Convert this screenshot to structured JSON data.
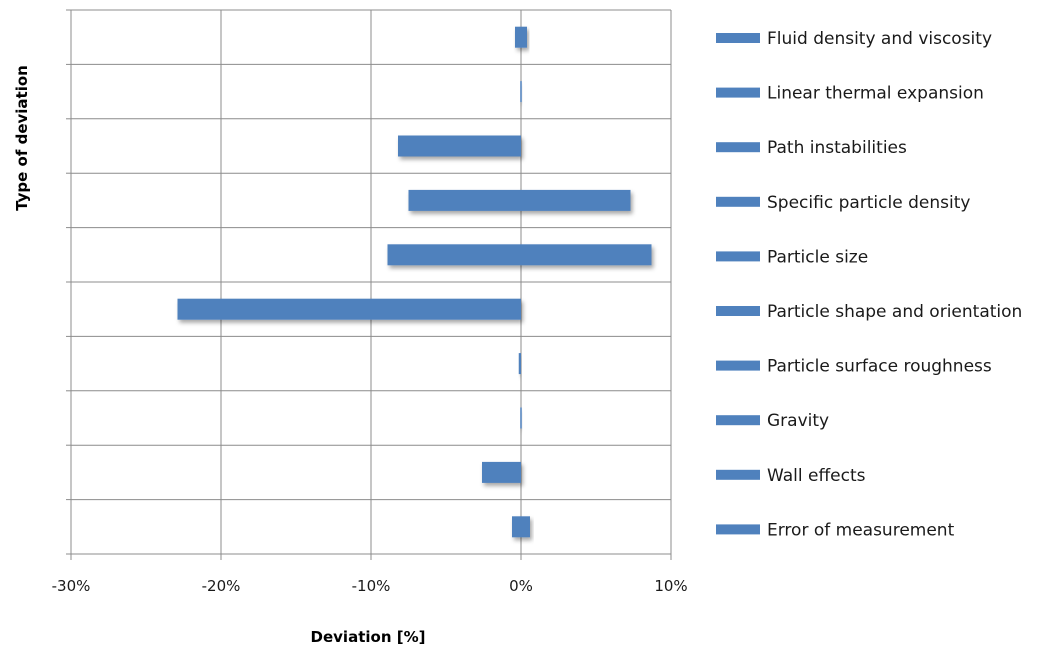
{
  "chart_data": {
    "type": "bar",
    "orientation": "horizontal",
    "xlabel": "Deviation [%]",
    "ylabel": "Type of deviation",
    "xlim": [
      -30,
      10
    ],
    "xticks": [
      -30,
      -20,
      -10,
      0,
      10
    ],
    "xtick_labels": [
      "-30%",
      "-20%",
      "-10%",
      "0%",
      "10%"
    ],
    "grid": true,
    "legend_position": "right",
    "bar_color": "#4f81bd",
    "categories": [
      "Fluid density and viscosity",
      "Linear thermal expansion",
      "Path instabilities",
      "Specific particle density",
      "Particle size",
      "Particle shape and orientation",
      "Particle surface roughness",
      "Gravity",
      "Wall effects",
      "Error of measurement"
    ],
    "ranges": [
      [
        -0.4,
        0.4
      ],
      [
        -0.05,
        0.05
      ],
      [
        -8.2,
        0
      ],
      [
        -7.5,
        7.3
      ],
      [
        -8.9,
        8.7
      ],
      [
        -22.9,
        0
      ],
      [
        -0.15,
        0
      ],
      [
        -0.05,
        0.05
      ],
      [
        -2.6,
        0
      ],
      [
        -0.6,
        0.6
      ]
    ]
  }
}
